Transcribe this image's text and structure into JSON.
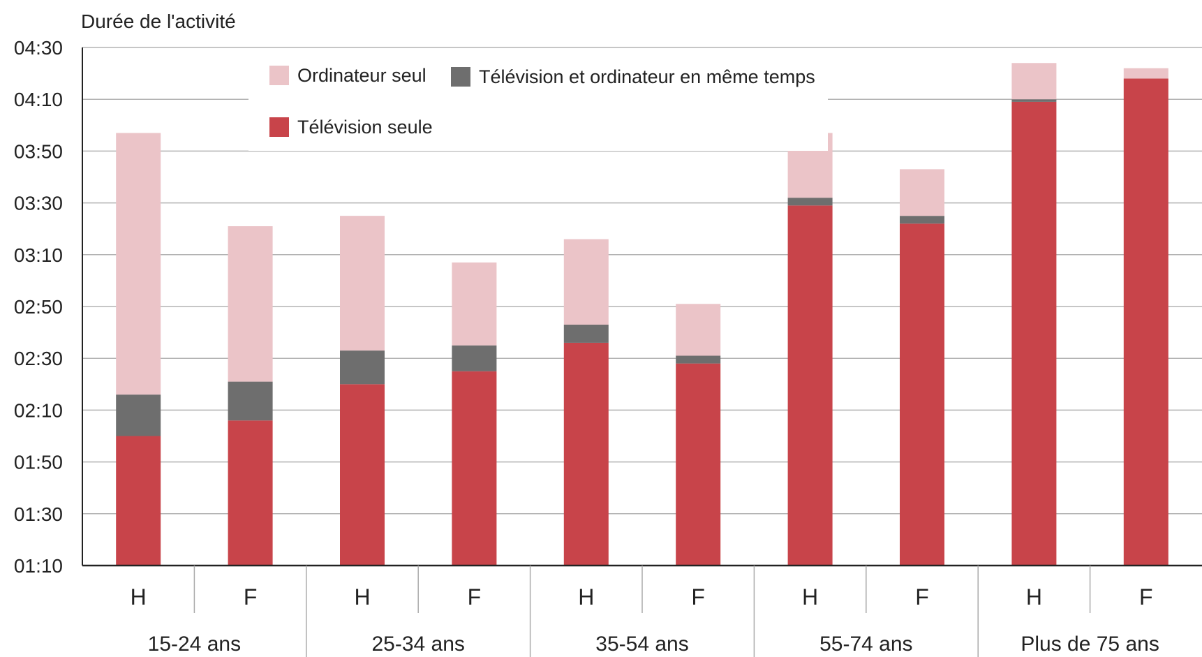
{
  "chart_data": {
    "type": "bar",
    "stacked": true,
    "title": "",
    "ylabel": "Durée de l'activité",
    "xlabel": "",
    "ylim": [
      "01:10",
      "04:30"
    ],
    "y_ticks": [
      "01:10",
      "01:30",
      "01:50",
      "02:10",
      "02:30",
      "02:50",
      "03:10",
      "03:30",
      "03:50",
      "04:10",
      "04:30"
    ],
    "grid": true,
    "legend_position": "top",
    "groups": [
      "15-24 ans",
      "25-34 ans",
      "35-54 ans",
      "55-74 ans",
      "Plus de 75 ans"
    ],
    "categories": [
      "H",
      "F",
      "H",
      "F",
      "H",
      "F",
      "H",
      "F",
      "H",
      "F"
    ],
    "series": [
      {
        "name": "Télévision seule",
        "color": "#c8444a",
        "values": [
          "02:00",
          "02:06",
          "02:20",
          "02:25",
          "02:36",
          "02:28",
          "03:29",
          "03:22",
          "04:09",
          "04:18"
        ]
      },
      {
        "name": "Télévision et ordinateur en même temps",
        "color": "#6e6e6e",
        "values": [
          "00:16",
          "00:15",
          "00:13",
          "00:10",
          "00:07",
          "00:03",
          "00:03",
          "00:03",
          "00:01",
          "00:00"
        ]
      },
      {
        "name": "Ordinateur seul",
        "color": "#ebc4c8",
        "values": [
          "01:41",
          "01:00",
          "00:52",
          "00:32",
          "00:33",
          "00:20",
          "00:25",
          "00:18",
          "00:14",
          "00:04"
        ]
      }
    ]
  }
}
